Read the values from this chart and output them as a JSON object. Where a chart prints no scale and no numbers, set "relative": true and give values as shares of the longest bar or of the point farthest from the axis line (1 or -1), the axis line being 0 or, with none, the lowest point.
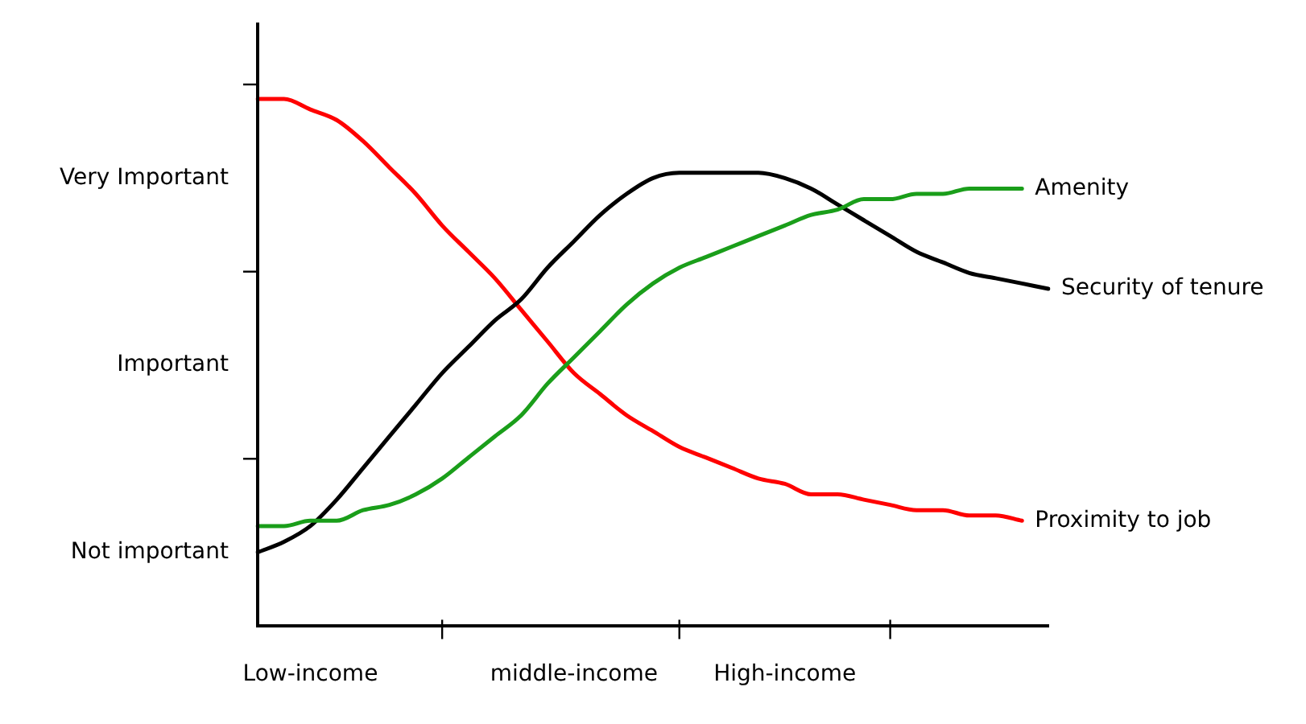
{
  "chart_data": {
    "type": "line",
    "relative": true,
    "categories": [
      null,
      null,
      "Low-income",
      null,
      null,
      null,
      null,
      null,
      null,
      null,
      null,
      null,
      "middle-income",
      null,
      null,
      null,
      null,
      null,
      null,
      null,
      "High-income",
      null,
      null,
      null,
      null,
      null,
      null,
      null,
      null,
      null,
      null
    ],
    "annotations": [
      "Not important",
      "Important",
      "Very Important"
    ],
    "grid": false,
    "legend": false,
    "marker": "none",
    "line_style": "solid",
    "series": [
      {
        "name": "Amenity",
        "color": "#1a9e1a",
        "values": [
          0.19,
          0.19,
          0.2,
          0.2,
          0.22,
          0.23,
          0.25,
          0.28,
          0.32,
          0.36,
          0.4,
          0.46,
          0.51,
          0.56,
          0.61,
          0.65,
          0.68,
          0.7,
          0.72,
          0.74,
          0.76,
          0.78,
          0.79,
          0.81,
          0.81,
          0.82,
          0.82,
          0.83,
          0.83,
          0.83,
          null
        ]
      },
      {
        "name": "Security of tenure",
        "color": "#000000",
        "values": [
          0.14,
          0.16,
          0.19,
          0.24,
          0.3,
          0.36,
          0.42,
          0.48,
          0.53,
          0.58,
          0.62,
          0.68,
          0.73,
          0.78,
          0.82,
          0.85,
          0.86,
          0.86,
          0.86,
          0.86,
          0.85,
          0.83,
          0.8,
          0.77,
          0.74,
          0.71,
          0.69,
          0.67,
          0.66,
          0.65,
          0.64
        ]
      },
      {
        "name": "Proximity to job",
        "color": "#ff0000",
        "values": [
          1,
          1,
          0.98,
          0.96,
          0.92,
          0.87,
          0.82,
          0.76,
          0.71,
          0.66,
          0.6,
          0.54,
          0.48,
          0.44,
          0.4,
          0.37,
          0.34,
          0.32,
          0.3,
          0.28,
          0.27,
          0.25,
          0.25,
          0.24,
          0.23,
          0.22,
          0.22,
          0.21,
          0.21,
          0.2,
          null
        ]
      }
    ]
  }
}
